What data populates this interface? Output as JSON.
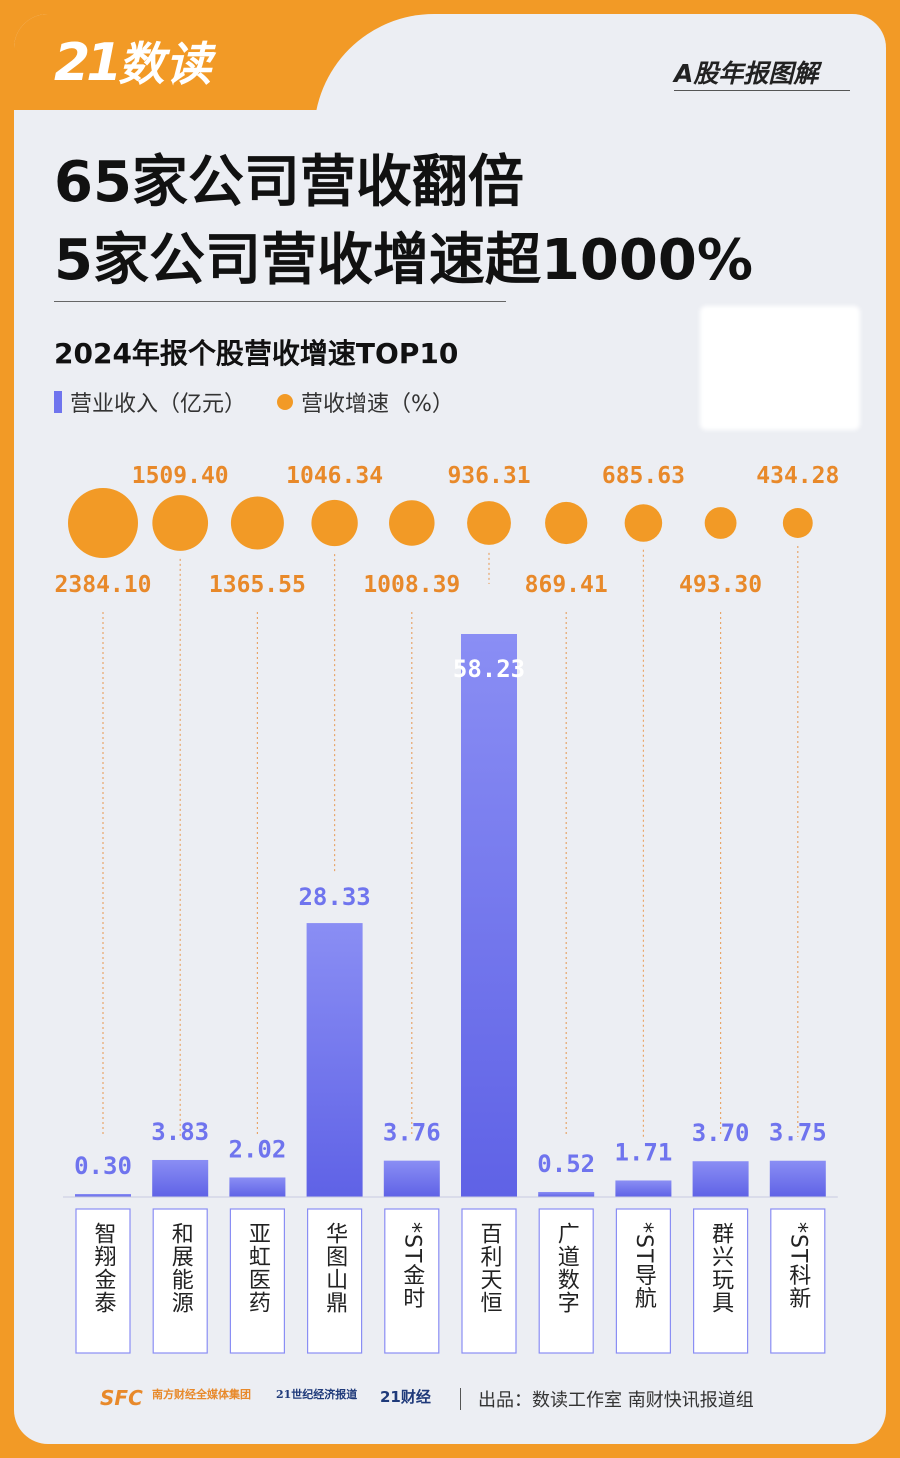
{
  "brand": {
    "logo_number": "21",
    "logo_text": "数读",
    "series_tag": "A股年报图解"
  },
  "headline": {
    "line1": "65家公司营收翻倍",
    "line2": "5家公司营收增速超1000%"
  },
  "legend": {
    "revenue": "营业收入（亿元）",
    "growth": "营收增速（%）"
  },
  "colors": {
    "page_border": "#f29a26",
    "card_bg": "#eceef3",
    "bar_top": "#8a8ef4",
    "bar_bottom": "#5f62e6",
    "dot": "#f29a26",
    "growth_label": "#e8892a",
    "revenue_label": "#6f74ee"
  },
  "chart_data": {
    "type": "bar",
    "title": "2024年报个股营收增速TOP10",
    "categories": [
      "智翔金泰",
      "和展能源",
      "亚虹医药",
      "华图山鼎",
      "*ST金时",
      "百利天恒",
      "广道数字",
      "*ST导航",
      "群兴玩具",
      "*ST科新"
    ],
    "series": [
      {
        "name": "营业收入（亿元）",
        "values": [
          0.3,
          3.83,
          2.02,
          28.33,
          3.76,
          58.23,
          0.52,
          1.71,
          3.7,
          3.75
        ],
        "labels": [
          "0.30",
          "3.83",
          "2.02",
          "28.33",
          "3.76",
          "58.23",
          "0.52",
          "1.71",
          "3.70",
          "3.75"
        ]
      },
      {
        "name": "营收增速（%）",
        "values": [
          2384.1,
          1509.4,
          1365.55,
          1046.34,
          1008.39,
          936.31,
          869.41,
          685.63,
          493.3,
          434.28
        ],
        "labels": [
          "2384.10",
          "1509.40",
          "1365.55",
          "1046.34",
          "1008.39",
          "936.31",
          "869.41",
          "685.63",
          "493.30",
          "434.28"
        ]
      }
    ],
    "legend": "top-left",
    "grid": false
  },
  "footer": {
    "sfc_mark": "SFC",
    "sfc_name": "南方财经全媒体集团",
    "herald": "21世纪经济报道",
    "caijing": "21财经",
    "credit": "出品：数读工作室  南财快讯报道组"
  }
}
